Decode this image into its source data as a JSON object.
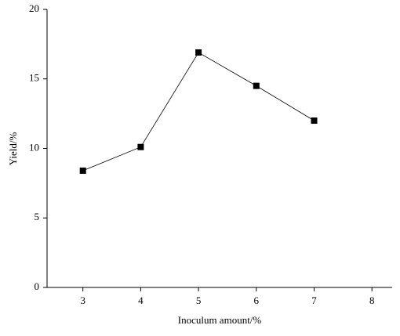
{
  "chart_data": {
    "type": "line",
    "x_label": "Inoculum amount/%",
    "y_label": "Yield/%",
    "x": [
      3,
      4,
      5,
      6,
      7
    ],
    "series": [
      {
        "name": "Yield",
        "color": "#000000",
        "values": [
          8.4,
          10.1,
          16.9,
          14.5,
          12.0
        ]
      }
    ],
    "xlim": [
      2.38,
      8.35
    ],
    "xticks": [
      3,
      4,
      5,
      6,
      7,
      8
    ],
    "ylim": [
      0,
      20
    ],
    "yticks": [
      0,
      5,
      10,
      15,
      20
    ],
    "grid": false,
    "marker": "square"
  }
}
